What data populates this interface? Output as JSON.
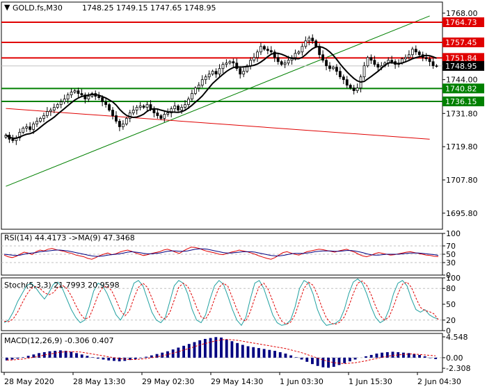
{
  "header": {
    "symbol_tf": "GOLD.fs,M30",
    "ohlc": "1748.25 1749.15 1747.65 1748.95"
  },
  "chart_data": [
    {
      "type": "candlestick",
      "symbol": "GOLD.fs",
      "timeframe": "M30",
      "ylim": [
        1690,
        1772
      ],
      "y_ticks": [
        "1768.00",
        "1757.45",
        "1744.00",
        "1731.80",
        "1719.80",
        "1707.80",
        "1695.80"
      ],
      "x_ticks": [
        "28 May 2020",
        "28 May 13:30",
        "29 May 02:30",
        "29 May 14:30",
        "1 Jun 03:30",
        "1 Jun 15:30",
        "2 Jun 04:30"
      ],
      "current_price": {
        "label": "1748.95",
        "value": 1748.95
      },
      "levels": [
        {
          "label": "1764.73",
          "value": 1764.73,
          "color": "#e00000"
        },
        {
          "label": "1757.45",
          "value": 1757.45,
          "color": "#e00000"
        },
        {
          "label": "1751.84",
          "value": 1751.84,
          "color": "#e00000"
        },
        {
          "label": "1740.82",
          "value": 1740.82,
          "color": "#008000"
        },
        {
          "label": "1736.15",
          "value": 1736.15,
          "color": "#008000"
        }
      ],
      "trendlines": [
        {
          "color": "#008000",
          "from": {
            "bar": 0,
            "value": 1705.5
          },
          "to": {
            "bar": 124,
            "value": 1767.0
          }
        },
        {
          "color": "#e00000",
          "from": {
            "bar": 0,
            "value": 1733.6
          },
          "to": {
            "bar": 124,
            "value": 1722.5
          }
        }
      ],
      "close_series": [
        1724,
        1722.5,
        1722,
        1723,
        1725,
        1726.5,
        1727,
        1726,
        1728,
        1729,
        1730,
        1731,
        1732.5,
        1733,
        1734,
        1735,
        1736,
        1737,
        1738.5,
        1739.5,
        1740,
        1739,
        1738.5,
        1737,
        1738,
        1739,
        1738,
        1737.5,
        1736,
        1735,
        1733,
        1731,
        1729,
        1727,
        1728,
        1730,
        1732,
        1733,
        1734,
        1734.5,
        1734,
        1735,
        1733.5,
        1732,
        1731,
        1730,
        1731.5,
        1732,
        1733.5,
        1734.5,
        1733,
        1734,
        1735,
        1737,
        1739,
        1741,
        1742,
        1744,
        1745,
        1746,
        1747,
        1746,
        1748,
        1749.5,
        1750,
        1750.5,
        1750,
        1748,
        1746,
        1747,
        1749,
        1751,
        1752,
        1754,
        1756,
        1755,
        1754.5,
        1754,
        1752,
        1750.5,
        1749.5,
        1750,
        1751,
        1752,
        1753.5,
        1754,
        1756,
        1758,
        1759,
        1758,
        1756,
        1753,
        1751,
        1749,
        1748,
        1748.5,
        1747,
        1745,
        1744,
        1742,
        1741,
        1740,
        1741,
        1745,
        1749,
        1752,
        1751,
        1749.5,
        1748.5,
        1749,
        1750,
        1751,
        1750.5,
        1749.5,
        1750,
        1751.5,
        1752,
        1753,
        1755,
        1754,
        1753,
        1752,
        1751.5,
        1750.5,
        1749,
        1748.95
      ],
      "ma_label": "MA"
    },
    {
      "type": "line",
      "name": "RSI",
      "header": "RSI(14) 44.4173 ->MA(9) 47.3468",
      "ylim": [
        0,
        100
      ],
      "y_ticks": [
        "100",
        "70",
        "50",
        "30",
        "0"
      ],
      "levels": [
        70,
        50,
        30
      ],
      "series": [
        {
          "name": "RSI(14)",
          "color": "#e00000",
          "values": [
            48,
            44,
            42,
            45,
            50,
            55,
            53,
            49,
            56,
            60,
            58,
            62,
            64,
            61,
            59,
            57,
            54,
            52,
            48,
            46,
            44,
            40,
            38,
            42,
            47,
            50,
            53,
            49,
            51,
            55,
            58,
            60,
            57,
            53,
            50,
            47,
            49,
            52,
            54,
            56,
            60,
            62,
            59,
            55,
            52,
            58,
            63,
            67,
            66,
            64,
            60,
            57,
            55,
            53,
            50,
            49,
            52,
            55,
            57,
            60,
            58,
            56,
            53,
            50,
            46,
            43,
            40,
            38,
            42,
            48,
            54,
            56,
            53,
            50,
            48,
            52,
            56,
            58,
            60,
            62,
            61,
            59,
            57,
            55,
            58,
            60,
            62,
            58,
            55,
            50,
            46,
            44,
            47,
            51,
            54,
            52,
            50,
            48,
            49,
            51,
            53,
            55,
            56,
            54,
            52,
            50,
            48,
            47,
            45,
            44.4
          ]
        },
        {
          "name": "MA(9)",
          "color": "#000080",
          "values": [
            50,
            49,
            48,
            47,
            48,
            50,
            52,
            53,
            54,
            56,
            57,
            58,
            59,
            60,
            60,
            59,
            58,
            56,
            54,
            52,
            50,
            48,
            46,
            45,
            45,
            46,
            48,
            49,
            50,
            51,
            53,
            55,
            56,
            55,
            54,
            52,
            51,
            51,
            52,
            53,
            55,
            57,
            58,
            58,
            57,
            57,
            58,
            60,
            62,
            63,
            63,
            62,
            60,
            58,
            56,
            54,
            53,
            53,
            54,
            55,
            56,
            56,
            56,
            55,
            53,
            51,
            49,
            47,
            46,
            46,
            47,
            49,
            51,
            52,
            52,
            52,
            53,
            54,
            56,
            57,
            58,
            58,
            58,
            57,
            57,
            58,
            59,
            59,
            58,
            56,
            54,
            51,
            49,
            48,
            48,
            49,
            50,
            50,
            50,
            50,
            51,
            52,
            53,
            53,
            53,
            52,
            51,
            50,
            49,
            47.3
          ]
        }
      ]
    },
    {
      "type": "line",
      "name": "Stochastic",
      "header": "Stoch(5,3,3) 21.7993 20.9598",
      "ylim": [
        0,
        100
      ],
      "y_ticks": [
        "100",
        "80",
        "50",
        "20",
        "0"
      ],
      "levels": [
        80,
        20
      ],
      "series": [
        {
          "name": "%K",
          "color": "#20a0a0",
          "values": [
            15,
            20,
            35,
            55,
            70,
            85,
            90,
            82,
            70,
            60,
            72,
            88,
            92,
            80,
            60,
            40,
            25,
            15,
            20,
            45,
            75,
            90,
            85,
            70,
            50,
            30,
            20,
            35,
            65,
            90,
            95,
            85,
            60,
            35,
            20,
            15,
            25,
            55,
            85,
            95,
            90,
            70,
            40,
            20,
            15,
            30,
            60,
            85,
            95,
            88,
            65,
            40,
            20,
            10,
            25,
            60,
            90,
            95,
            80,
            55,
            30,
            15,
            10,
            12,
            20,
            45,
            80,
            95,
            90,
            70,
            40,
            20,
            10,
            12,
            14,
            20,
            40,
            70,
            92,
            98,
            90,
            70,
            45,
            25,
            15,
            20,
            40,
            70,
            90,
            95,
            85,
            60,
            40,
            35,
            40,
            30,
            25,
            21.8
          ]
        },
        {
          "name": "%D",
          "color": "#e00000",
          "values": [
            18,
            17,
            22,
            35,
            52,
            68,
            80,
            84,
            80,
            72,
            68,
            72,
            82,
            86,
            80,
            66,
            48,
            32,
            22,
            25,
            45,
            68,
            82,
            84,
            76,
            58,
            38,
            28,
            38,
            62,
            82,
            90,
            82,
            62,
            40,
            26,
            22,
            34,
            58,
            82,
            90,
            84,
            66,
            44,
            26,
            22,
            36,
            60,
            82,
            90,
            84,
            62,
            40,
            22,
            18,
            36,
            62,
            84,
            90,
            78,
            56,
            34,
            18,
            12,
            16,
            30,
            56,
            80,
            92,
            86,
            68,
            44,
            24,
            14,
            12,
            16,
            26,
            46,
            70,
            90,
            94,
            86,
            68,
            46,
            28,
            20,
            26,
            46,
            70,
            88,
            92,
            82,
            62,
            44,
            38,
            36,
            32,
            20.96
          ]
        }
      ]
    },
    {
      "type": "bar",
      "name": "MACD",
      "header": "MACD(12,26,9) -0.306 0.407",
      "ylim": [
        -3.2,
        5.3
      ],
      "y_ticks": [
        "4.548",
        "0.00",
        "-2.308"
      ],
      "series": [
        {
          "name": "MACD(12,26,9)",
          "color": "#000080",
          "values": [
            -0.6,
            -0.4,
            -0.2,
            0.1,
            0.4,
            0.7,
            1.0,
            1.2,
            1.4,
            1.5,
            1.6,
            1.5,
            1.3,
            1.0,
            0.7,
            0.4,
            0.1,
            -0.2,
            -0.4,
            -0.6,
            -0.7,
            -0.8,
            -0.7,
            -0.5,
            -0.3,
            -0.1,
            0.2,
            0.5,
            0.8,
            1.1,
            1.4,
            1.8,
            2.2,
            2.6,
            3.0,
            3.4,
            3.8,
            4.1,
            4.3,
            4.5,
            4.4,
            4.0,
            3.6,
            3.2,
            2.8,
            2.5,
            2.3,
            2.1,
            1.9,
            1.7,
            1.5,
            1.2,
            0.9,
            0.5,
            0.1,
            -0.4,
            -0.9,
            -1.4,
            -1.8,
            -2.1,
            -2.2,
            -2.0,
            -1.6,
            -1.2,
            -0.8,
            -0.4,
            0.0,
            0.3,
            0.6,
            0.9,
            1.1,
            1.2,
            1.3,
            1.2,
            1.1,
            1.0,
            0.8,
            0.6,
            0.3,
            -0.1,
            -0.306
          ]
        },
        {
          "name": "Signal",
          "color": "#e00000",
          "values": [
            -0.5,
            -0.5,
            -0.4,
            -0.3,
            -0.1,
            0.1,
            0.3,
            0.6,
            0.8,
            1.0,
            1.2,
            1.3,
            1.3,
            1.3,
            1.2,
            1.0,
            0.8,
            0.6,
            0.4,
            0.2,
            0.0,
            -0.2,
            -0.3,
            -0.4,
            -0.4,
            -0.3,
            -0.2,
            0.0,
            0.2,
            0.4,
            0.7,
            1.0,
            1.3,
            1.7,
            2.0,
            2.4,
            2.8,
            3.1,
            3.4,
            3.7,
            3.9,
            4.0,
            3.9,
            3.8,
            3.6,
            3.4,
            3.2,
            3.0,
            2.8,
            2.6,
            2.4,
            2.2,
            2.0,
            1.7,
            1.4,
            1.1,
            0.7,
            0.3,
            -0.1,
            -0.5,
            -0.8,
            -1.1,
            -1.2,
            -1.3,
            -1.2,
            -1.1,
            -0.9,
            -0.7,
            -0.4,
            -0.2,
            0.1,
            0.3,
            0.5,
            0.6,
            0.7,
            0.8,
            0.8,
            0.7,
            0.6,
            0.5,
            0.407
          ]
        }
      ]
    }
  ]
}
